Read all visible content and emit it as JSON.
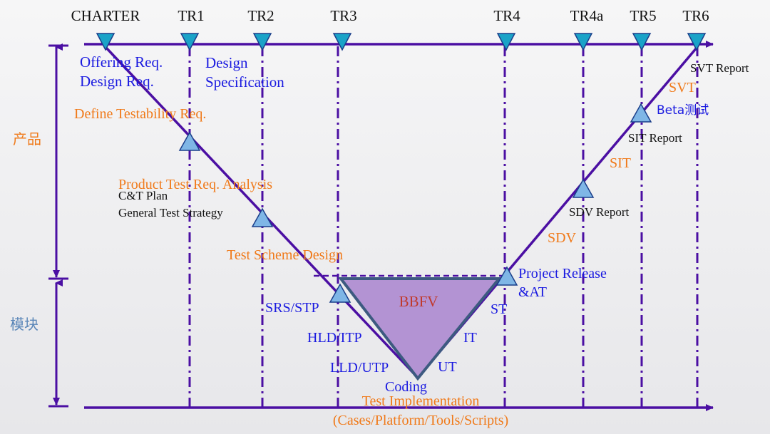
{
  "gates": [
    "CHARTER",
    "TR1",
    "TR2",
    "TR3",
    "TR4",
    "TR4a",
    "TR5",
    "TR6"
  ],
  "sides": {
    "product": "产品",
    "module": "模块"
  },
  "left_arm": {
    "offering_req": "Offering Req.",
    "design_req": "Design Req.",
    "design": "Design",
    "specification": "Specification",
    "define_testability": "Define Testability Req.",
    "product_test_req": "Product Test Req. Analysis",
    "ct_plan": "C&T Plan",
    "general_test_strategy": "General Test Strategy",
    "test_scheme_design": "Test Scheme Design",
    "srs_stp": "SRS/STP",
    "hld_itp": "HLD/ITP",
    "lld_utp": "LLD/UTP",
    "coding": "Coding"
  },
  "right_arm": {
    "svt_report": "SVT Report",
    "svt": "SVT",
    "beta": "Beta测试",
    "sit_report": "SIT Report",
    "sit": "SIT",
    "sdv_report": "SDV Report",
    "sdv": "SDV",
    "project_release": "Project Release",
    "at": "&AT",
    "st": "ST",
    "it": "IT",
    "ut": "UT"
  },
  "center": {
    "bbfv": "BBFV"
  },
  "bottom": {
    "test_implementation": "Test Implementation",
    "cases": "(Cases/Platform/Tools/Scripts)"
  },
  "colors": {
    "line": "#4b0fa3",
    "triangle": "#7fb6e6",
    "bbfv_fill": "#b393d3",
    "bbfv_border": "#3d5a80"
  }
}
